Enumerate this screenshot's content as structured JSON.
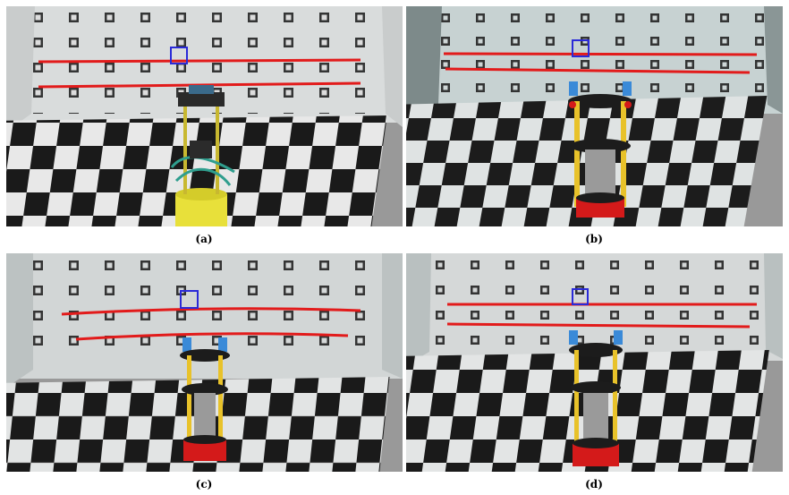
{
  "figure": {
    "panels": [
      {
        "caption": "(a)",
        "scene": "real-photo",
        "robot": "real-yellow-robot"
      },
      {
        "caption": "(b)",
        "scene": "rendered",
        "robot": "simulated-robot"
      },
      {
        "caption": "(c)",
        "scene": "rendered",
        "robot": "simulated-robot"
      },
      {
        "caption": "(d)",
        "scene": "rendered",
        "robot": "simulated-robot"
      }
    ],
    "colors": {
      "horizon_line": "#e21b1b",
      "highlight_box": "#2a2ad8",
      "floor_dark": "#1a1a1a",
      "floor_light": "#e8e8e8"
    }
  }
}
